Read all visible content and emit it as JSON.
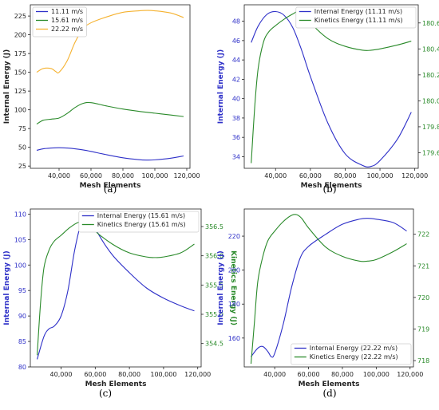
{
  "colors": {
    "blue": "#2e30c8",
    "green": "#2a8a2a",
    "orange": "#f5b230",
    "frame": "#222222",
    "tick_text": "#222222"
  },
  "captions": [
    "(a)",
    "(b)",
    "(c)",
    "(d)"
  ],
  "chart_data": [
    {
      "type": "line",
      "xlabel": "Mesh Elements",
      "ylabel": "Internal Energy (J)",
      "xlim": [
        22000,
        122000
      ],
      "ylim": [
        22,
        240
      ],
      "xticks": [
        40000,
        60000,
        80000,
        100000,
        120000
      ],
      "xtick_labels": [
        "40,000",
        "60,000",
        "80,000",
        "100,000",
        "120,000"
      ],
      "yticks": [
        25,
        50,
        75,
        100,
        125,
        150,
        175,
        200,
        225
      ],
      "ytick_labels": [
        "25",
        "50",
        "75",
        "100",
        "125",
        "150",
        "175",
        "200",
        "225"
      ],
      "legend_position": "top-left",
      "series": [
        {
          "name": "11.11 m/s",
          "color": "#2e30c8",
          "x": [
            26000,
            30000,
            35000,
            40000,
            45000,
            50000,
            55000,
            60000,
            70000,
            80000,
            90000,
            95000,
            100000,
            110000,
            118000
          ],
          "y": [
            46,
            48,
            49,
            49.5,
            49,
            48,
            46.5,
            44.5,
            40,
            36,
            33.5,
            33,
            33.3,
            35.5,
            38.5
          ]
        },
        {
          "name": "15.61 m/s",
          "color": "#2a8a2a",
          "x": [
            26000,
            30000,
            35000,
            40000,
            45000,
            50000,
            55000,
            60000,
            70000,
            80000,
            90000,
            100000,
            110000,
            118000
          ],
          "y": [
            81,
            86,
            87.5,
            89,
            95,
            103,
            108.5,
            109.5,
            105,
            101,
            98,
            95.5,
            93,
            91
          ]
        },
        {
          "name": "22.22 m/s",
          "color": "#f5b230",
          "x": [
            26000,
            30000,
            35000,
            38000,
            40000,
            45000,
            50000,
            55000,
            60000,
            70000,
            80000,
            90000,
            95000,
            100000,
            110000,
            118000
          ],
          "y": [
            150,
            155,
            155,
            151,
            150,
            165,
            190,
            208,
            216,
            224,
            230,
            232,
            232.5,
            232,
            229,
            223
          ]
        }
      ]
    },
    {
      "type": "line",
      "xlabel": "Mesh Elements",
      "ylabel": "Internal Energy (J)",
      "y2label": "Kinetics Energy (J)",
      "xlim": [
        22000,
        122000
      ],
      "ylim": [
        32.8,
        49.7
      ],
      "y2lim": [
        179.48,
        180.74
      ],
      "xticks": [
        40000,
        60000,
        80000,
        100000,
        120000
      ],
      "xtick_labels": [
        "40,000",
        "60,000",
        "80,000",
        "100,000",
        "120,000"
      ],
      "yticks": [
        34,
        36,
        38,
        40,
        42,
        44,
        46,
        48
      ],
      "ytick_labels": [
        "34",
        "36",
        "38",
        "40",
        "42",
        "44",
        "46",
        "48"
      ],
      "y2ticks": [
        179.6,
        179.8,
        180.0,
        180.2,
        180.4,
        180.6
      ],
      "y2tick_labels": [
        "179.6",
        "179.8",
        "180.0",
        "180.2",
        "180.4",
        "180.6"
      ],
      "legend_position": "top-right",
      "series": [
        {
          "name": "Internal Energy (11.11 m/s)",
          "color": "#2e30c8",
          "axis": "left",
          "x": [
            26000,
            30000,
            35000,
            40000,
            45000,
            50000,
            55000,
            60000,
            70000,
            80000,
            90000,
            95000,
            100000,
            110000,
            118000
          ],
          "y": [
            45.8,
            47.5,
            48.7,
            49.0,
            48.6,
            47.3,
            45.0,
            42.3,
            37.5,
            34.3,
            33.1,
            33.0,
            33.6,
            35.8,
            38.6
          ]
        },
        {
          "name": "Kinetics Energy (11.11 m/s)",
          "color": "#2a8a2a",
          "axis": "right",
          "x": [
            26000,
            28000,
            30000,
            33000,
            36000,
            40000,
            45000,
            50000,
            53000,
            56000,
            60000,
            70000,
            80000,
            90000,
            95000,
            100000,
            110000,
            118000
          ],
          "y": [
            179.52,
            179.95,
            180.25,
            180.45,
            180.53,
            180.58,
            180.63,
            180.67,
            180.69,
            180.67,
            180.6,
            180.48,
            180.42,
            180.39,
            180.39,
            180.4,
            180.43,
            180.46
          ]
        }
      ]
    },
    {
      "type": "line",
      "xlabel": "Mesh Elements",
      "ylabel": "Internal Energy (J)",
      "y2label": "Kinetics Energy (J)",
      "xlim": [
        22000,
        122000
      ],
      "ylim": [
        80,
        111
      ],
      "y2lim": [
        354.1,
        356.8
      ],
      "xticks": [
        40000,
        60000,
        80000,
        100000,
        120000
      ],
      "xtick_labels": [
        "40,000",
        "60,000",
        "80,000",
        "100,000",
        "120,000"
      ],
      "yticks": [
        80,
        85,
        90,
        95,
        100,
        105,
        110
      ],
      "ytick_labels": [
        "80",
        "85",
        "90",
        "95",
        "100",
        "105",
        "110"
      ],
      "y2ticks": [
        354.5,
        355.0,
        355.5,
        356.0,
        356.5
      ],
      "y2tick_labels": [
        "354.5",
        "355.0",
        "355.5",
        "356.0",
        "356.5"
      ],
      "legend_position": "top-right",
      "series": [
        {
          "name": "Internal Energy (15.61 m/s)",
          "color": "#2e30c8",
          "axis": "left",
          "x": [
            26000,
            30000,
            33000,
            36000,
            40000,
            44000,
            48000,
            52000,
            55000,
            58000,
            62000,
            70000,
            80000,
            90000,
            100000,
            110000,
            118000
          ],
          "y": [
            81.5,
            86,
            87.5,
            88,
            90,
            95,
            103,
            108.5,
            110,
            109,
            106,
            102,
            98.5,
            95.5,
            93.5,
            92,
            91
          ]
        },
        {
          "name": "Kinetics Energy (15.61 m/s)",
          "color": "#2a8a2a",
          "axis": "right",
          "x": [
            26000,
            28000,
            30000,
            33000,
            36000,
            40000,
            45000,
            50000,
            55000,
            60000,
            70000,
            80000,
            90000,
            95000,
            100000,
            110000,
            118000
          ],
          "y": [
            354.3,
            355.2,
            355.8,
            356.1,
            356.25,
            356.35,
            356.48,
            356.57,
            356.58,
            356.42,
            356.2,
            356.05,
            355.98,
            355.97,
            355.98,
            356.05,
            356.2
          ]
        }
      ]
    },
    {
      "type": "line",
      "xlabel": "Mesh Elements",
      "ylabel": "Internal Energy (J)",
      "y2label": "Kinetics Energy (J)",
      "xlim": [
        22000,
        122000
      ],
      "ylim": [
        143,
        236
      ],
      "y2lim": [
        717.8,
        722.8
      ],
      "xticks": [
        40000,
        60000,
        80000,
        100000,
        120000
      ],
      "xtick_labels": [
        "40,000",
        "60,000",
        "80,000",
        "100,000",
        "120,000"
      ],
      "yticks": [
        160,
        180,
        200,
        220
      ],
      "ytick_labels": [
        "160",
        "180",
        "200",
        "220"
      ],
      "y2ticks": [
        718,
        719,
        720,
        721,
        722
      ],
      "y2tick_labels": [
        "718",
        "719",
        "720",
        "721",
        "722"
      ],
      "legend_position": "bottom-right",
      "series": [
        {
          "name": "Internal Energy (22.22 m/s)",
          "color": "#2e30c8",
          "axis": "left",
          "x": [
            26000,
            30000,
            33000,
            36000,
            38000,
            40000,
            45000,
            50000,
            55000,
            60000,
            70000,
            80000,
            90000,
            95000,
            100000,
            110000,
            118000
          ],
          "y": [
            149,
            154,
            155,
            152,
            149,
            151,
            168,
            190,
            207,
            214,
            221,
            227,
            230,
            230.5,
            230,
            228,
            223
          ]
        },
        {
          "name": "Kinetics Energy (22.22 m/s)",
          "color": "#2a8a2a",
          "axis": "right",
          "x": [
            26000,
            28000,
            30000,
            33000,
            36000,
            40000,
            45000,
            50000,
            53000,
            56000,
            60000,
            70000,
            80000,
            90000,
            95000,
            100000,
            110000,
            118000
          ],
          "y": [
            717.9,
            719.2,
            720.5,
            721.3,
            721.8,
            722.1,
            722.4,
            722.6,
            722.62,
            722.5,
            722.2,
            721.6,
            721.3,
            721.15,
            721.15,
            721.2,
            721.45,
            721.7
          ]
        }
      ]
    }
  ]
}
